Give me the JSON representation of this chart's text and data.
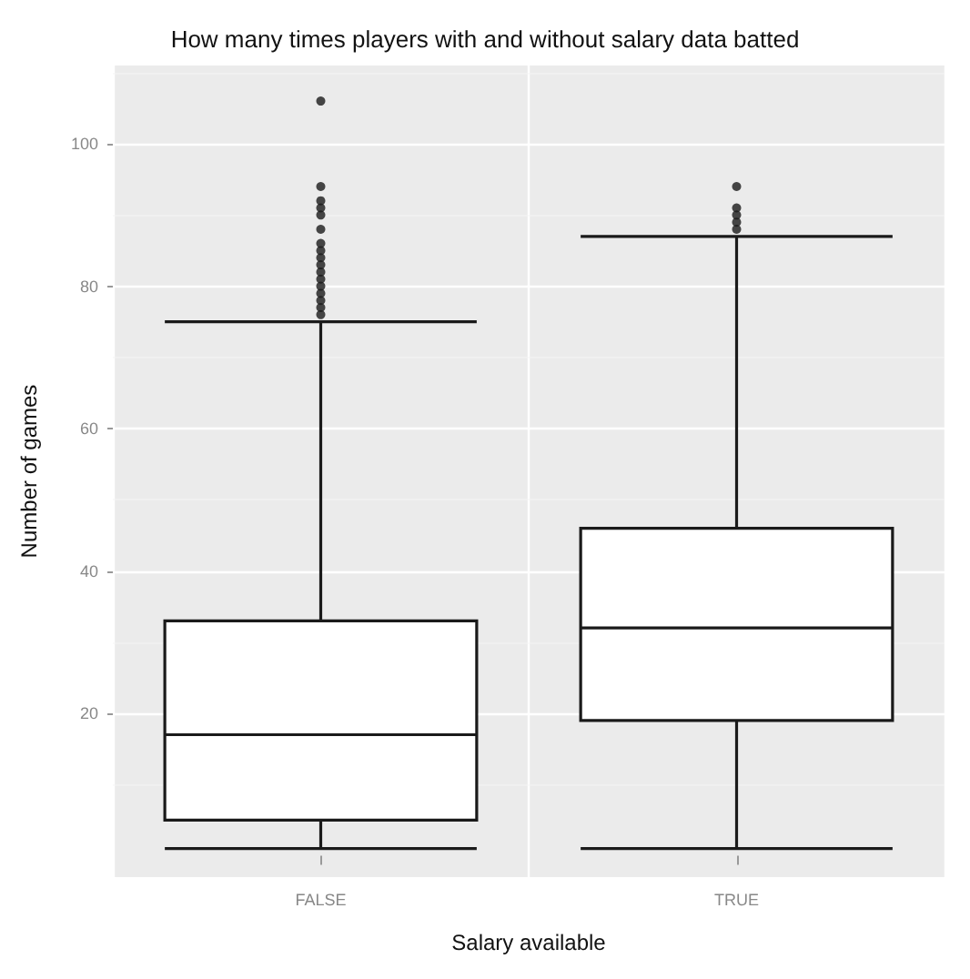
{
  "chart_data": {
    "type": "box",
    "title": "How many times players with and without salary data batted",
    "xlabel": "Salary available",
    "ylabel": "Number of games",
    "categories": [
      "FALSE",
      "TRUE"
    ],
    "boxes": [
      {
        "low": 1,
        "q1": 5,
        "median": 17,
        "q3": 33,
        "high": 75,
        "outliers": [
          76,
          77,
          78,
          79,
          80,
          81,
          82,
          83,
          84,
          85,
          86,
          88,
          90,
          91,
          92,
          94,
          106
        ]
      },
      {
        "low": 1,
        "q1": 19,
        "median": 32,
        "q3": 46,
        "high": 87,
        "outliers": [
          88,
          89,
          90,
          91,
          94
        ]
      }
    ],
    "ylim": [
      -3,
      111
    ],
    "yticks": [
      20,
      40,
      60,
      80,
      100
    ],
    "grid": true
  }
}
